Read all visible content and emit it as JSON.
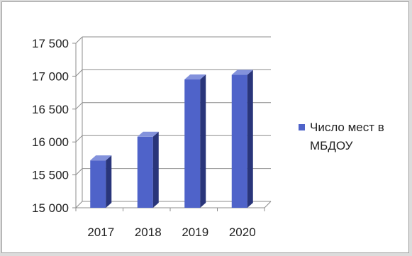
{
  "chart_data": {
    "type": "bar",
    "style": "3d-column",
    "categories": [
      "2017",
      "2018",
      "2019",
      "2020"
    ],
    "series": [
      {
        "name": "Число мест в МБДОУ",
        "values": [
          15720,
          16080,
          16950,
          17020
        ]
      }
    ],
    "ylim": [
      15000,
      17500
    ],
    "yticks": [
      15000,
      15500,
      16000,
      16500,
      17000,
      17500
    ],
    "ytick_labels": [
      "15 000",
      "15 500",
      "16 000",
      "16 500",
      "17 000",
      "17 500"
    ],
    "grid": true,
    "legend_position": "right",
    "colors": {
      "bar_front": "#4f63c9",
      "bar_side": "#29357a",
      "bar_top": "#8392dc",
      "grid": "#8c8c8c"
    }
  }
}
